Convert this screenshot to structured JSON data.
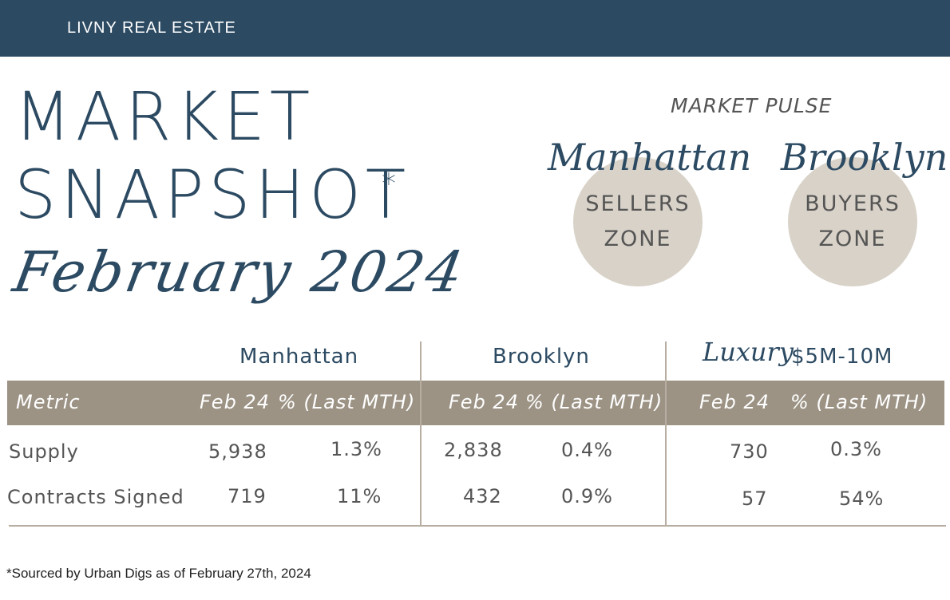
{
  "header": {
    "brand": "LIVNY REAL ESTATE"
  },
  "title": {
    "line1": "MARKET",
    "line2": "SNAPSHOT",
    "asterisk": "*",
    "month": "February 2024"
  },
  "pulse": {
    "label": "MARKET PULSE",
    "markets": [
      {
        "city": "Manhattan",
        "zone_line1": "SELLERS",
        "zone_line2": "ZONE"
      },
      {
        "city": "Brooklyn",
        "zone_line1": "BUYERS",
        "zone_line2": "ZONE"
      }
    ]
  },
  "table": {
    "groups": {
      "manhattan": "Manhattan",
      "brooklyn": "Brooklyn",
      "luxury_script": "Luxury",
      "luxury_range": "$5M-10M"
    },
    "columns": {
      "metric": "Metric",
      "current": "Feb 24",
      "change": "% (Last MTH)"
    },
    "rows": [
      {
        "metric": "Supply",
        "man_val": "5,938",
        "man_pct": "1.3%",
        "bk_val": "2,838",
        "bk_pct": "0.4%",
        "lux_val": "730",
        "lux_pct": "0.3%"
      },
      {
        "metric": "Contracts Signed",
        "man_val": "719",
        "man_pct": "11%",
        "bk_val": "432",
        "bk_pct": "0.9%",
        "lux_val": "57",
        "lux_pct": "54%"
      }
    ]
  },
  "footnote": "*Sourced by Urban Digs as of February 27th, 2024",
  "colors": {
    "navy": "#2c4a62",
    "taupe": "#9c9385",
    "circle": "#d8d2c8",
    "rule": "#b7ada0"
  }
}
